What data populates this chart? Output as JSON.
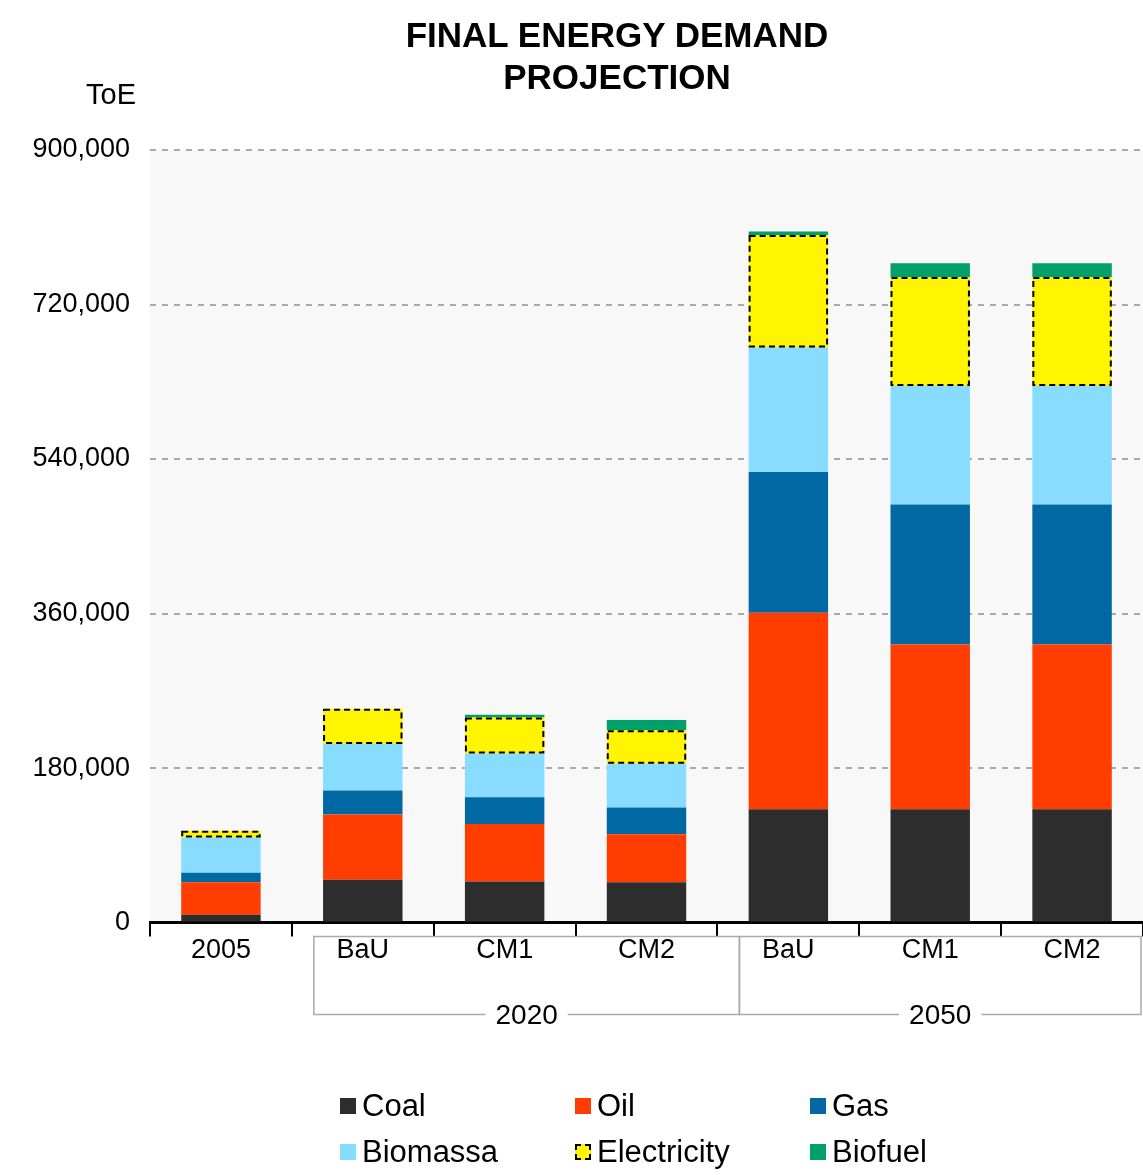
{
  "chart_data": {
    "type": "bar",
    "title": "FINAL ENERGY DEMAND PROJECTION",
    "ylabel": "ToE",
    "categories": [
      "2005",
      "BaU",
      "CM1",
      "CM2",
      "BaU",
      "CM1",
      "CM2"
    ],
    "annotations": [
      "2020",
      "2050"
    ],
    "stacked": true,
    "series": [
      {
        "name": "Coal",
        "color": "#2d2d2d",
        "values": [
          9000,
          50000,
          48000,
          47000,
          132000,
          132000,
          132000
        ]
      },
      {
        "name": "Oil",
        "color": "#ff3d00",
        "values": [
          38000,
          76000,
          67000,
          56000,
          229000,
          192000,
          192000
        ]
      },
      {
        "name": "Gas",
        "color": "#0068a3",
        "values": [
          11000,
          28000,
          31000,
          31000,
          164000,
          163000,
          163000
        ]
      },
      {
        "name": "Biomassa",
        "color": "#87dcff",
        "values": [
          41000,
          54000,
          51000,
          51000,
          145000,
          138000,
          138000
        ]
      },
      {
        "name": "Electricity",
        "color": "#fff500",
        "line_style": "dashed",
        "values": [
          8000,
          41000,
          42000,
          39000,
          131000,
          127000,
          127000
        ]
      },
      {
        "name": "Biofuel",
        "color": "#00a06a",
        "values": [
          0,
          0,
          3000,
          12000,
          4000,
          16000,
          16000
        ]
      }
    ],
    "ylim": [
      0,
      900000
    ],
    "yticks": [
      {
        "value": 0,
        "label": "0"
      },
      {
        "value": 180000,
        "label": "180,000"
      },
      {
        "value": 360000,
        "label": "360,000"
      },
      {
        "value": 540000,
        "label": "540,000"
      },
      {
        "value": 720000,
        "label": "720,000"
      },
      {
        "value": 900000,
        "label": "900,000"
      }
    ],
    "grid": "y",
    "legend": "bottom"
  }
}
